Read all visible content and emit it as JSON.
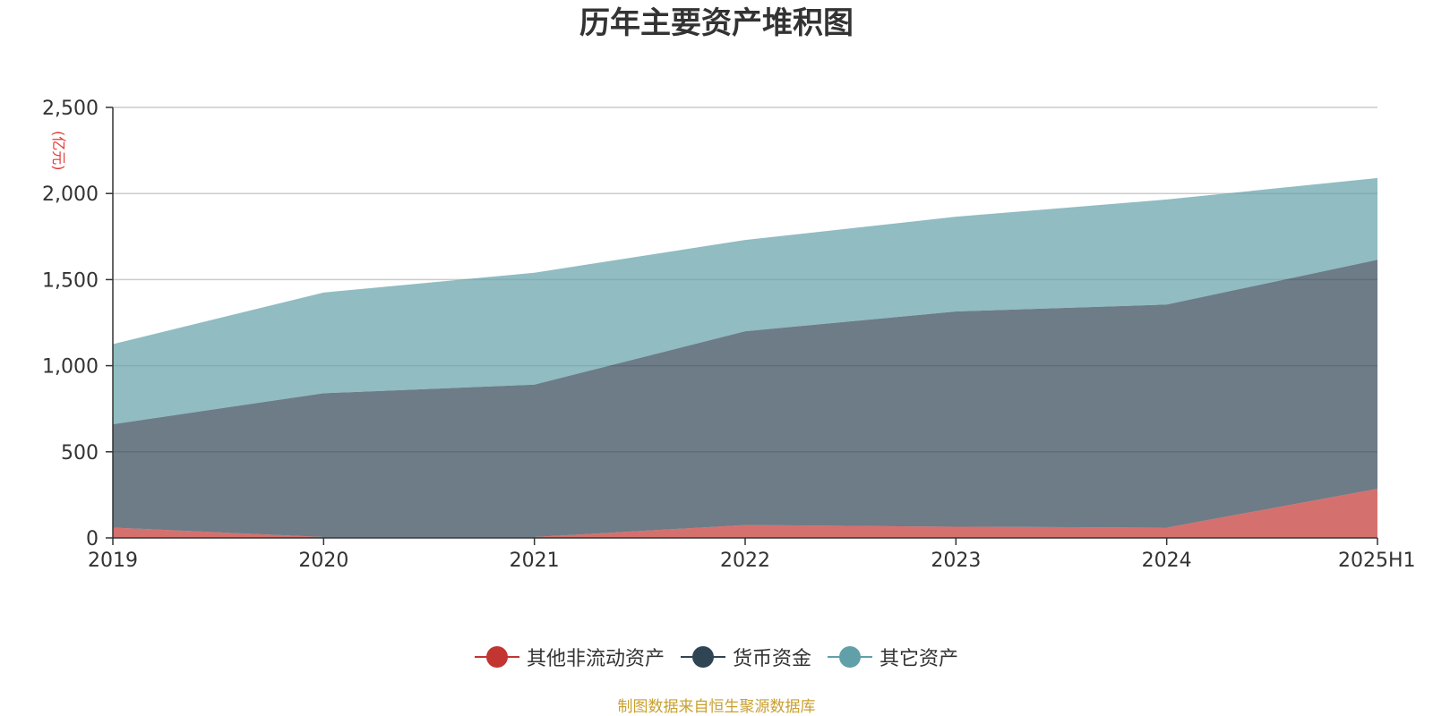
{
  "chart_data": {
    "type": "area",
    "stacked": true,
    "title": "历年主要资产堆积图",
    "unit_label": "(亿元)",
    "categories": [
      "2019",
      "2020",
      "2021",
      "2022",
      "2023",
      "2024",
      "2025H1"
    ],
    "ylim": [
      0,
      2500
    ],
    "yticks": [
      0,
      500,
      1000,
      1500,
      2000,
      2500
    ],
    "ytick_labels": [
      "0",
      "500",
      "1,000",
      "1,500",
      "2,000",
      "2,500"
    ],
    "grid": true,
    "legend_position": "bottom",
    "series": [
      {
        "name": "其他非流动资产",
        "color": "#c23531",
        "values": [
          60,
          5,
          5,
          75,
          65,
          60,
          285
        ]
      },
      {
        "name": "货币资金",
        "color": "#2f4554",
        "values": [
          600,
          835,
          885,
          1125,
          1250,
          1295,
          1330
        ]
      },
      {
        "name": "其它资产",
        "color": "#61a0a8",
        "values": [
          465,
          585,
          650,
          530,
          550,
          610,
          475
        ]
      }
    ],
    "source_note": "制图数据来自恒生聚源数据库"
  }
}
